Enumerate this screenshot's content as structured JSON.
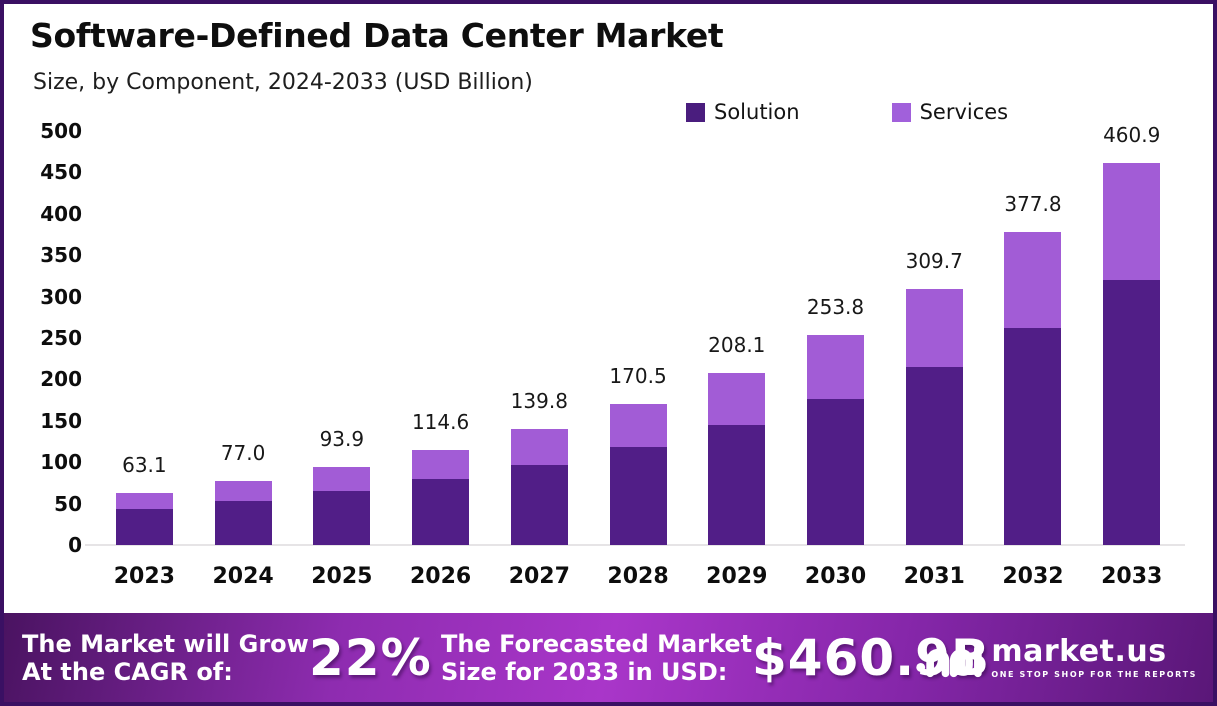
{
  "header": {
    "title": "Software-Defined Data Center Market",
    "subtitle": "Size, by Component, 2024-2033 (USD Billion)"
  },
  "legend": {
    "items": [
      {
        "label": "Solution",
        "color": "#4a1d7e"
      },
      {
        "label": "Services",
        "color": "#a160db"
      }
    ]
  },
  "chart_data": {
    "type": "bar",
    "stacked": true,
    "title": "Software-Defined Data Center Market Size, by Component, 2024-2033 (USD Billion)",
    "categories": [
      "2023",
      "2024",
      "2025",
      "2026",
      "2027",
      "2028",
      "2029",
      "2030",
      "2031",
      "2032",
      "2033"
    ],
    "totals": [
      63.1,
      77.0,
      93.9,
      114.6,
      139.8,
      170.5,
      208.1,
      253.8,
      309.7,
      377.8,
      460.9
    ],
    "total_labels": [
      "63.1",
      "77.0",
      "93.9",
      "114.6",
      "139.8",
      "170.5",
      "208.1",
      "253.8",
      "309.7",
      "377.8",
      "460.9"
    ],
    "series": [
      {
        "name": "Solution",
        "color": "#511e87",
        "values": [
          43.9,
          53.5,
          65.3,
          79.7,
          97.2,
          118.5,
          144.6,
          176.4,
          215.2,
          262.6,
          320.3
        ]
      },
      {
        "name": "Services",
        "color": "#a25cd6",
        "values": [
          19.2,
          23.5,
          28.6,
          34.9,
          42.6,
          52.0,
          63.5,
          77.4,
          94.5,
          115.2,
          140.6
        ]
      }
    ],
    "y_ticks": [
      "500",
      "450",
      "400",
      "350",
      "300",
      "250",
      "200",
      "150",
      "100",
      "50",
      "0"
    ],
    "ylim": [
      0,
      500
    ],
    "grid": false,
    "legend_position": "top-right",
    "unit": "USD Billion"
  },
  "banner": {
    "cagr_label_line1": "The Market will Grow",
    "cagr_label_line2": "At the CAGR of:",
    "cagr_value": "22%",
    "forecast_label_line1": "The Forecasted Market",
    "forecast_label_line2": "Size for 2033 in USD:",
    "forecast_value": "$460.9B",
    "logo_text": "market.us",
    "logo_tagline": "ONE STOP SHOP FOR THE REPORTS",
    "gradient": [
      "#4a1361",
      "#a936c9",
      "#5a1778"
    ]
  }
}
